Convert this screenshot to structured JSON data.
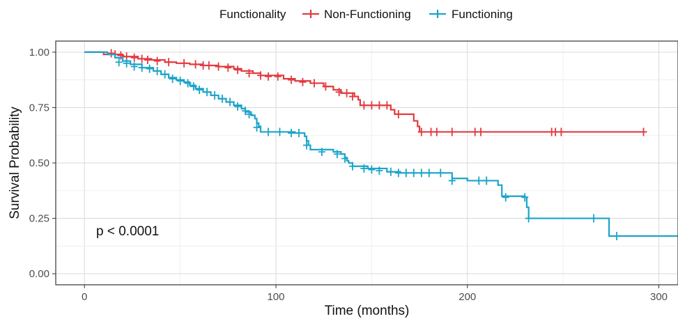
{
  "chart_data": {
    "type": "line",
    "subtype": "kaplan-meier-step",
    "title": "",
    "xlabel": "Time (months)",
    "ylabel": "Survival Probability",
    "xlim": [
      -15,
      310
    ],
    "ylim": [
      -0.05,
      1.05
    ],
    "x_ticks": [
      0,
      100,
      200,
      300
    ],
    "y_ticks": [
      0.0,
      0.25,
      0.5,
      0.75,
      1.0
    ],
    "y_tick_labels": [
      "0.00",
      "0.25",
      "0.50",
      "0.75",
      "1.00"
    ],
    "x_tick_labels": [
      "0",
      "100",
      "200",
      "300"
    ],
    "grid": true,
    "legend": {
      "title": "Functionality",
      "position": "top",
      "entries": [
        "Non-Functioning",
        "Functioning"
      ]
    },
    "annotation": "p < 0.0001",
    "series": [
      {
        "name": "Non-Functioning",
        "color": "#e23a3f",
        "steps": [
          [
            0,
            1.0
          ],
          [
            10,
            0.99
          ],
          [
            20,
            0.98
          ],
          [
            28,
            0.97
          ],
          [
            35,
            0.965
          ],
          [
            42,
            0.955
          ],
          [
            48,
            0.95
          ],
          [
            55,
            0.945
          ],
          [
            62,
            0.94
          ],
          [
            70,
            0.935
          ],
          [
            78,
            0.925
          ],
          [
            82,
            0.915
          ],
          [
            88,
            0.905
          ],
          [
            92,
            0.895
          ],
          [
            104,
            0.88
          ],
          [
            110,
            0.87
          ],
          [
            118,
            0.86
          ],
          [
            125,
            0.845
          ],
          [
            130,
            0.83
          ],
          [
            134,
            0.815
          ],
          [
            141,
            0.8
          ],
          [
            143,
            0.785
          ],
          [
            144,
            0.76
          ],
          [
            160,
            0.74
          ],
          [
            162,
            0.72
          ],
          [
            170,
            0.72
          ],
          [
            172,
            0.69
          ],
          [
            174,
            0.665
          ],
          [
            175,
            0.64
          ],
          [
            292,
            0.64
          ]
        ],
        "censored": [
          [
            14,
            0.995
          ],
          [
            16,
            0.99
          ],
          [
            19,
            0.985
          ],
          [
            22,
            0.98
          ],
          [
            26,
            0.975
          ],
          [
            30,
            0.97
          ],
          [
            33,
            0.965
          ],
          [
            38,
            0.96
          ],
          [
            44,
            0.955
          ],
          [
            52,
            0.95
          ],
          [
            58,
            0.945
          ],
          [
            62,
            0.94
          ],
          [
            65,
            0.94
          ],
          [
            70,
            0.935
          ],
          [
            75,
            0.93
          ],
          [
            80,
            0.92
          ],
          [
            86,
            0.905
          ],
          [
            92,
            0.895
          ],
          [
            96,
            0.89
          ],
          [
            101,
            0.89
          ],
          [
            108,
            0.875
          ],
          [
            114,
            0.865
          ],
          [
            120,
            0.86
          ],
          [
            126,
            0.845
          ],
          [
            133,
            0.82
          ],
          [
            137,
            0.815
          ],
          [
            140,
            0.8
          ],
          [
            146,
            0.76
          ],
          [
            150,
            0.76
          ],
          [
            154,
            0.76
          ],
          [
            158,
            0.76
          ],
          [
            164,
            0.72
          ],
          [
            176,
            0.64
          ],
          [
            181,
            0.64
          ],
          [
            184,
            0.64
          ],
          [
            192,
            0.64
          ],
          [
            204,
            0.64
          ],
          [
            207,
            0.64
          ],
          [
            244,
            0.64
          ],
          [
            246,
            0.64
          ],
          [
            249,
            0.64
          ],
          [
            292,
            0.64
          ]
        ]
      },
      {
        "name": "Functioning",
        "color": "#1aa4c9",
        "steps": [
          [
            0,
            1.0
          ],
          [
            12,
            0.99
          ],
          [
            16,
            0.975
          ],
          [
            20,
            0.96
          ],
          [
            24,
            0.945
          ],
          [
            30,
            0.93
          ],
          [
            36,
            0.915
          ],
          [
            40,
            0.9
          ],
          [
            44,
            0.885
          ],
          [
            48,
            0.875
          ],
          [
            52,
            0.865
          ],
          [
            55,
            0.85
          ],
          [
            58,
            0.835
          ],
          [
            62,
            0.82
          ],
          [
            66,
            0.805
          ],
          [
            70,
            0.79
          ],
          [
            74,
            0.775
          ],
          [
            78,
            0.76
          ],
          [
            82,
            0.745
          ],
          [
            84,
            0.73
          ],
          [
            87,
            0.715
          ],
          [
            89,
            0.7
          ],
          [
            90,
            0.68
          ],
          [
            91,
            0.665
          ],
          [
            92,
            0.64
          ],
          [
            110,
            0.635
          ],
          [
            115,
            0.62
          ],
          [
            116,
            0.6
          ],
          [
            117,
            0.58
          ],
          [
            118,
            0.56
          ],
          [
            130,
            0.55
          ],
          [
            134,
            0.54
          ],
          [
            136,
            0.525
          ],
          [
            137,
            0.51
          ],
          [
            138,
            0.5
          ],
          [
            140,
            0.485
          ],
          [
            148,
            0.475
          ],
          [
            158,
            0.46
          ],
          [
            165,
            0.455
          ],
          [
            192,
            0.43
          ],
          [
            200,
            0.42
          ],
          [
            214,
            0.42
          ],
          [
            216,
            0.4
          ],
          [
            218,
            0.35
          ],
          [
            230,
            0.345
          ],
          [
            231,
            0.3
          ],
          [
            232,
            0.25
          ],
          [
            273,
            0.25
          ],
          [
            274,
            0.17
          ],
          [
            310,
            0.17
          ]
        ],
        "censored": [
          [
            18,
            0.955
          ],
          [
            22,
            0.95
          ],
          [
            26,
            0.935
          ],
          [
            30,
            0.93
          ],
          [
            34,
            0.925
          ],
          [
            38,
            0.915
          ],
          [
            42,
            0.9
          ],
          [
            46,
            0.88
          ],
          [
            50,
            0.87
          ],
          [
            54,
            0.86
          ],
          [
            57,
            0.845
          ],
          [
            60,
            0.83
          ],
          [
            64,
            0.82
          ],
          [
            68,
            0.805
          ],
          [
            72,
            0.79
          ],
          [
            76,
            0.775
          ],
          [
            80,
            0.755
          ],
          [
            84,
            0.735
          ],
          [
            86,
            0.72
          ],
          [
            90,
            0.66
          ],
          [
            96,
            0.64
          ],
          [
            102,
            0.64
          ],
          [
            108,
            0.635
          ],
          [
            112,
            0.635
          ],
          [
            116,
            0.58
          ],
          [
            124,
            0.55
          ],
          [
            132,
            0.54
          ],
          [
            136,
            0.52
          ],
          [
            140,
            0.485
          ],
          [
            146,
            0.475
          ],
          [
            150,
            0.47
          ],
          [
            154,
            0.465
          ],
          [
            160,
            0.46
          ],
          [
            164,
            0.455
          ],
          [
            168,
            0.455
          ],
          [
            172,
            0.455
          ],
          [
            176,
            0.455
          ],
          [
            180,
            0.455
          ],
          [
            186,
            0.455
          ],
          [
            192,
            0.42
          ],
          [
            206,
            0.42
          ],
          [
            210,
            0.42
          ],
          [
            220,
            0.345
          ],
          [
            230,
            0.345
          ],
          [
            232,
            0.25
          ],
          [
            266,
            0.25
          ],
          [
            278,
            0.17
          ]
        ]
      }
    ]
  }
}
